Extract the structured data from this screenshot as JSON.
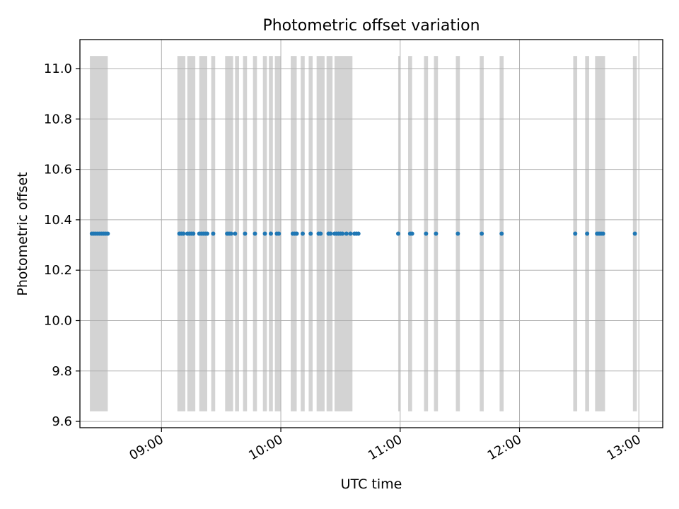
{
  "chart_data": {
    "type": "scatter",
    "title": "Photometric offset variation",
    "xlabel": "UTC time",
    "ylabel": "Photometric offset",
    "x_ticks": [
      "09:00",
      "10:00",
      "11:00",
      "12:00",
      "13:00"
    ],
    "y_ticks": [
      "9.6",
      "9.8",
      "10.0",
      "10.2",
      "10.4",
      "10.6",
      "10.8",
      "11.0"
    ],
    "x_range": [
      "08:19",
      "13:12"
    ],
    "ylim": [
      9.575,
      11.115
    ],
    "grid": true,
    "series": [
      {
        "color": "#1f77b4",
        "x": [
          "08:25",
          "08:26",
          "08:27",
          "08:28",
          "08:29",
          "08:30",
          "08:31",
          "08:32",
          "08:33",
          "09:09",
          "09:10",
          "09:11",
          "09:13",
          "09:14",
          "09:15",
          "09:16",
          "09:19",
          "09:20",
          "09:21",
          "09:22",
          "09:23",
          "09:26",
          "09:33",
          "09:34",
          "09:35",
          "09:37",
          "09:42",
          "09:47",
          "09:52",
          "09:55",
          "09:58",
          "09:59",
          "10:06",
          "10:07",
          "10:08",
          "10:11",
          "10:15",
          "10:19",
          "10:20",
          "10:24",
          "10:25",
          "10:27",
          "10:28",
          "10:29",
          "10:30",
          "10:31",
          "10:33",
          "10:35",
          "10:37",
          "10:38",
          "10:39",
          "10:59",
          "11:05",
          "11:06",
          "11:13",
          "11:18",
          "11:29",
          "11:41",
          "11:51",
          "12:28",
          "12:34",
          "12:39",
          "12:40",
          "12:41",
          "12:42",
          "12:58"
        ],
        "y": [
          10.345,
          10.345,
          10.345,
          10.345,
          10.345,
          10.345,
          10.345,
          10.345,
          10.345,
          10.345,
          10.345,
          10.345,
          10.345,
          10.345,
          10.345,
          10.345,
          10.345,
          10.345,
          10.345,
          10.345,
          10.345,
          10.345,
          10.345,
          10.345,
          10.345,
          10.345,
          10.345,
          10.345,
          10.345,
          10.345,
          10.345,
          10.345,
          10.345,
          10.345,
          10.345,
          10.345,
          10.345,
          10.345,
          10.345,
          10.345,
          10.345,
          10.345,
          10.345,
          10.345,
          10.345,
          10.345,
          10.345,
          10.345,
          10.345,
          10.345,
          10.345,
          10.345,
          10.345,
          10.345,
          10.345,
          10.345,
          10.345,
          10.345,
          10.345,
          10.345,
          10.345,
          10.345,
          10.345,
          10.345,
          10.345,
          10.345
        ]
      }
    ],
    "shaded_spans": {
      "color": "#d3d3d3",
      "y_range": [
        9.64,
        11.05
      ],
      "intervals": [
        [
          "08:24",
          "08:33"
        ],
        [
          "09:08",
          "09:12"
        ],
        [
          "09:13",
          "09:17"
        ],
        [
          "09:19",
          "09:23"
        ],
        [
          "09:25",
          "09:27"
        ],
        [
          "09:32",
          "09:36"
        ],
        [
          "09:37",
          "09:39"
        ],
        [
          "09:41",
          "09:43"
        ],
        [
          "09:46",
          "09:48"
        ],
        [
          "09:51",
          "09:53"
        ],
        [
          "09:54",
          "09:56"
        ],
        [
          "09:57",
          "10:00"
        ],
        [
          "10:05",
          "10:08"
        ],
        [
          "10:10",
          "10:12"
        ],
        [
          "10:14",
          "10:16"
        ],
        [
          "10:18",
          "10:22"
        ],
        [
          "10:23",
          "10:26"
        ],
        [
          "10:27",
          "10:36"
        ],
        [
          "10:59",
          "11:00"
        ],
        [
          "11:04",
          "11:06"
        ],
        [
          "11:12",
          "11:14"
        ],
        [
          "11:17",
          "11:19"
        ],
        [
          "11:28",
          "11:30"
        ],
        [
          "11:40",
          "11:42"
        ],
        [
          "11:50",
          "11:52"
        ],
        [
          "12:27",
          "12:29"
        ],
        [
          "12:33",
          "12:35"
        ],
        [
          "12:38",
          "12:43"
        ],
        [
          "12:57",
          "12:59"
        ]
      ]
    }
  }
}
